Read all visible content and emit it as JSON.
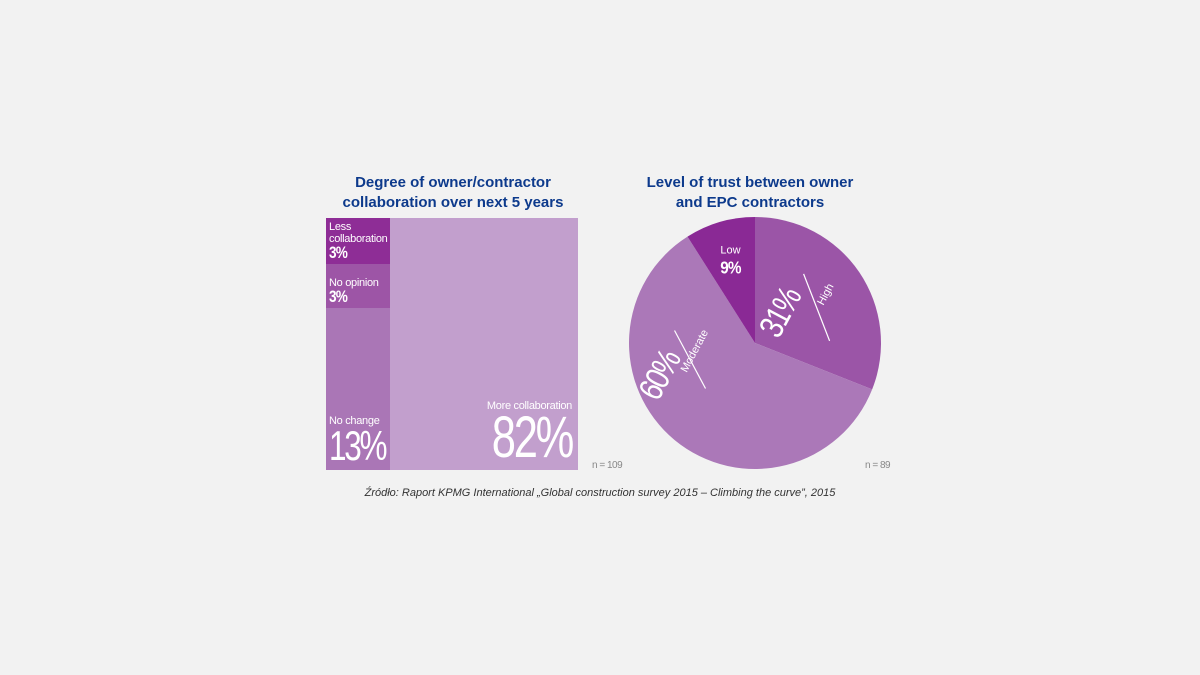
{
  "chart_data": [
    {
      "type": "treemap",
      "title_lines": [
        "Degree of owner/contractor",
        "collaboration over next 5 years"
      ],
      "n_label": "n = 109",
      "cells": [
        {
          "label": "Less collaboration",
          "label_lines": [
            "Less",
            "collaboration"
          ],
          "value": 3,
          "value_label": "3%",
          "color": "#8e2d96"
        },
        {
          "label": "No opinion",
          "value": 3,
          "value_label": "3%",
          "color": "#9d55a6"
        },
        {
          "label": "No change",
          "value": 13,
          "value_label": "13%",
          "color": "#aa76b6"
        },
        {
          "label": "More collaboration",
          "value": 82,
          "value_label": "82%",
          "color": "#c29fcd"
        }
      ]
    },
    {
      "type": "pie",
      "title_lines": [
        "Level of trust between owner",
        "and EPC contractors"
      ],
      "n_label": "n = 89",
      "slices": [
        {
          "label": "High",
          "value": 31,
          "value_label": "31%",
          "color": "#9b55a7"
        },
        {
          "label": "Moderate",
          "value": 60,
          "value_label": "60%",
          "color": "#ab78b8"
        },
        {
          "label": "Low",
          "value": 9,
          "value_label": "9%",
          "color": "#8a2995"
        }
      ]
    }
  ],
  "source": "Źródło: Raport KPMG International „Global construction survey 2015 – Climbing the curve”, 2015"
}
